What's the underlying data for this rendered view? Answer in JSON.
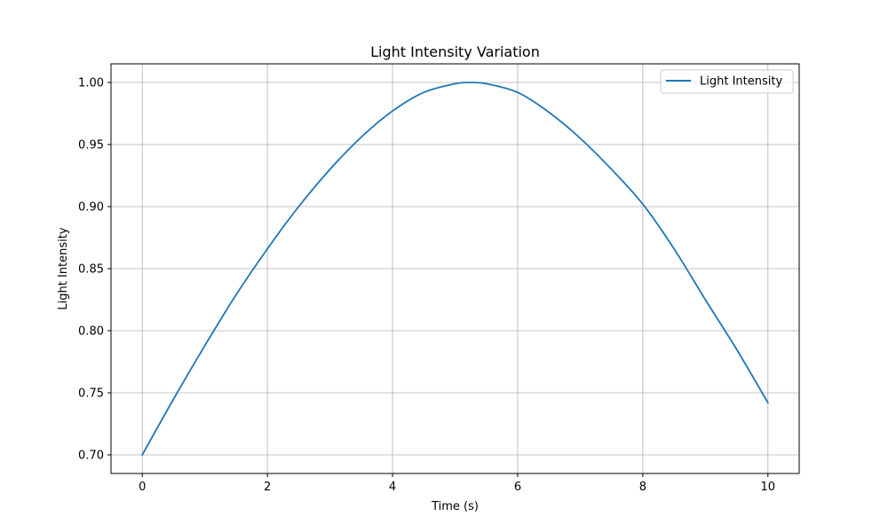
{
  "chart_data": {
    "type": "line",
    "title": "Light Intensity Variation",
    "xlabel": "Time (s)",
    "ylabel": "Light Intensity",
    "xlim": [
      -0.5,
      10.5
    ],
    "ylim": [
      0.685,
      1.015
    ],
    "x_ticks": [
      0,
      2,
      4,
      6,
      8,
      10
    ],
    "x_tick_labels": [
      "0",
      "2",
      "4",
      "6",
      "8",
      "10"
    ],
    "y_ticks": [
      0.7,
      0.75,
      0.8,
      0.85,
      0.9,
      0.95,
      1.0
    ],
    "y_tick_labels": [
      "0.70",
      "0.75",
      "0.80",
      "0.85",
      "0.90",
      "0.95",
      "1.00"
    ],
    "grid": true,
    "legend_position": "top-right",
    "series": [
      {
        "name": "Light Intensity",
        "color": "#1f77b4",
        "x": [
          0,
          0.5,
          1,
          1.5,
          2,
          2.5,
          3,
          3.5,
          4,
          4.5,
          5,
          5.236,
          5.5,
          6,
          6.5,
          7,
          7.5,
          8,
          8.5,
          9,
          9.5,
          10
        ],
        "y": [
          0.7,
          0.745,
          0.788,
          0.829,
          0.866,
          0.9,
          0.93,
          0.956,
          0.977,
          0.992,
          0.999,
          1.0,
          0.999,
          0.992,
          0.976,
          0.955,
          0.93,
          0.902,
          0.866,
          0.825,
          0.785,
          0.742
        ]
      }
    ]
  }
}
